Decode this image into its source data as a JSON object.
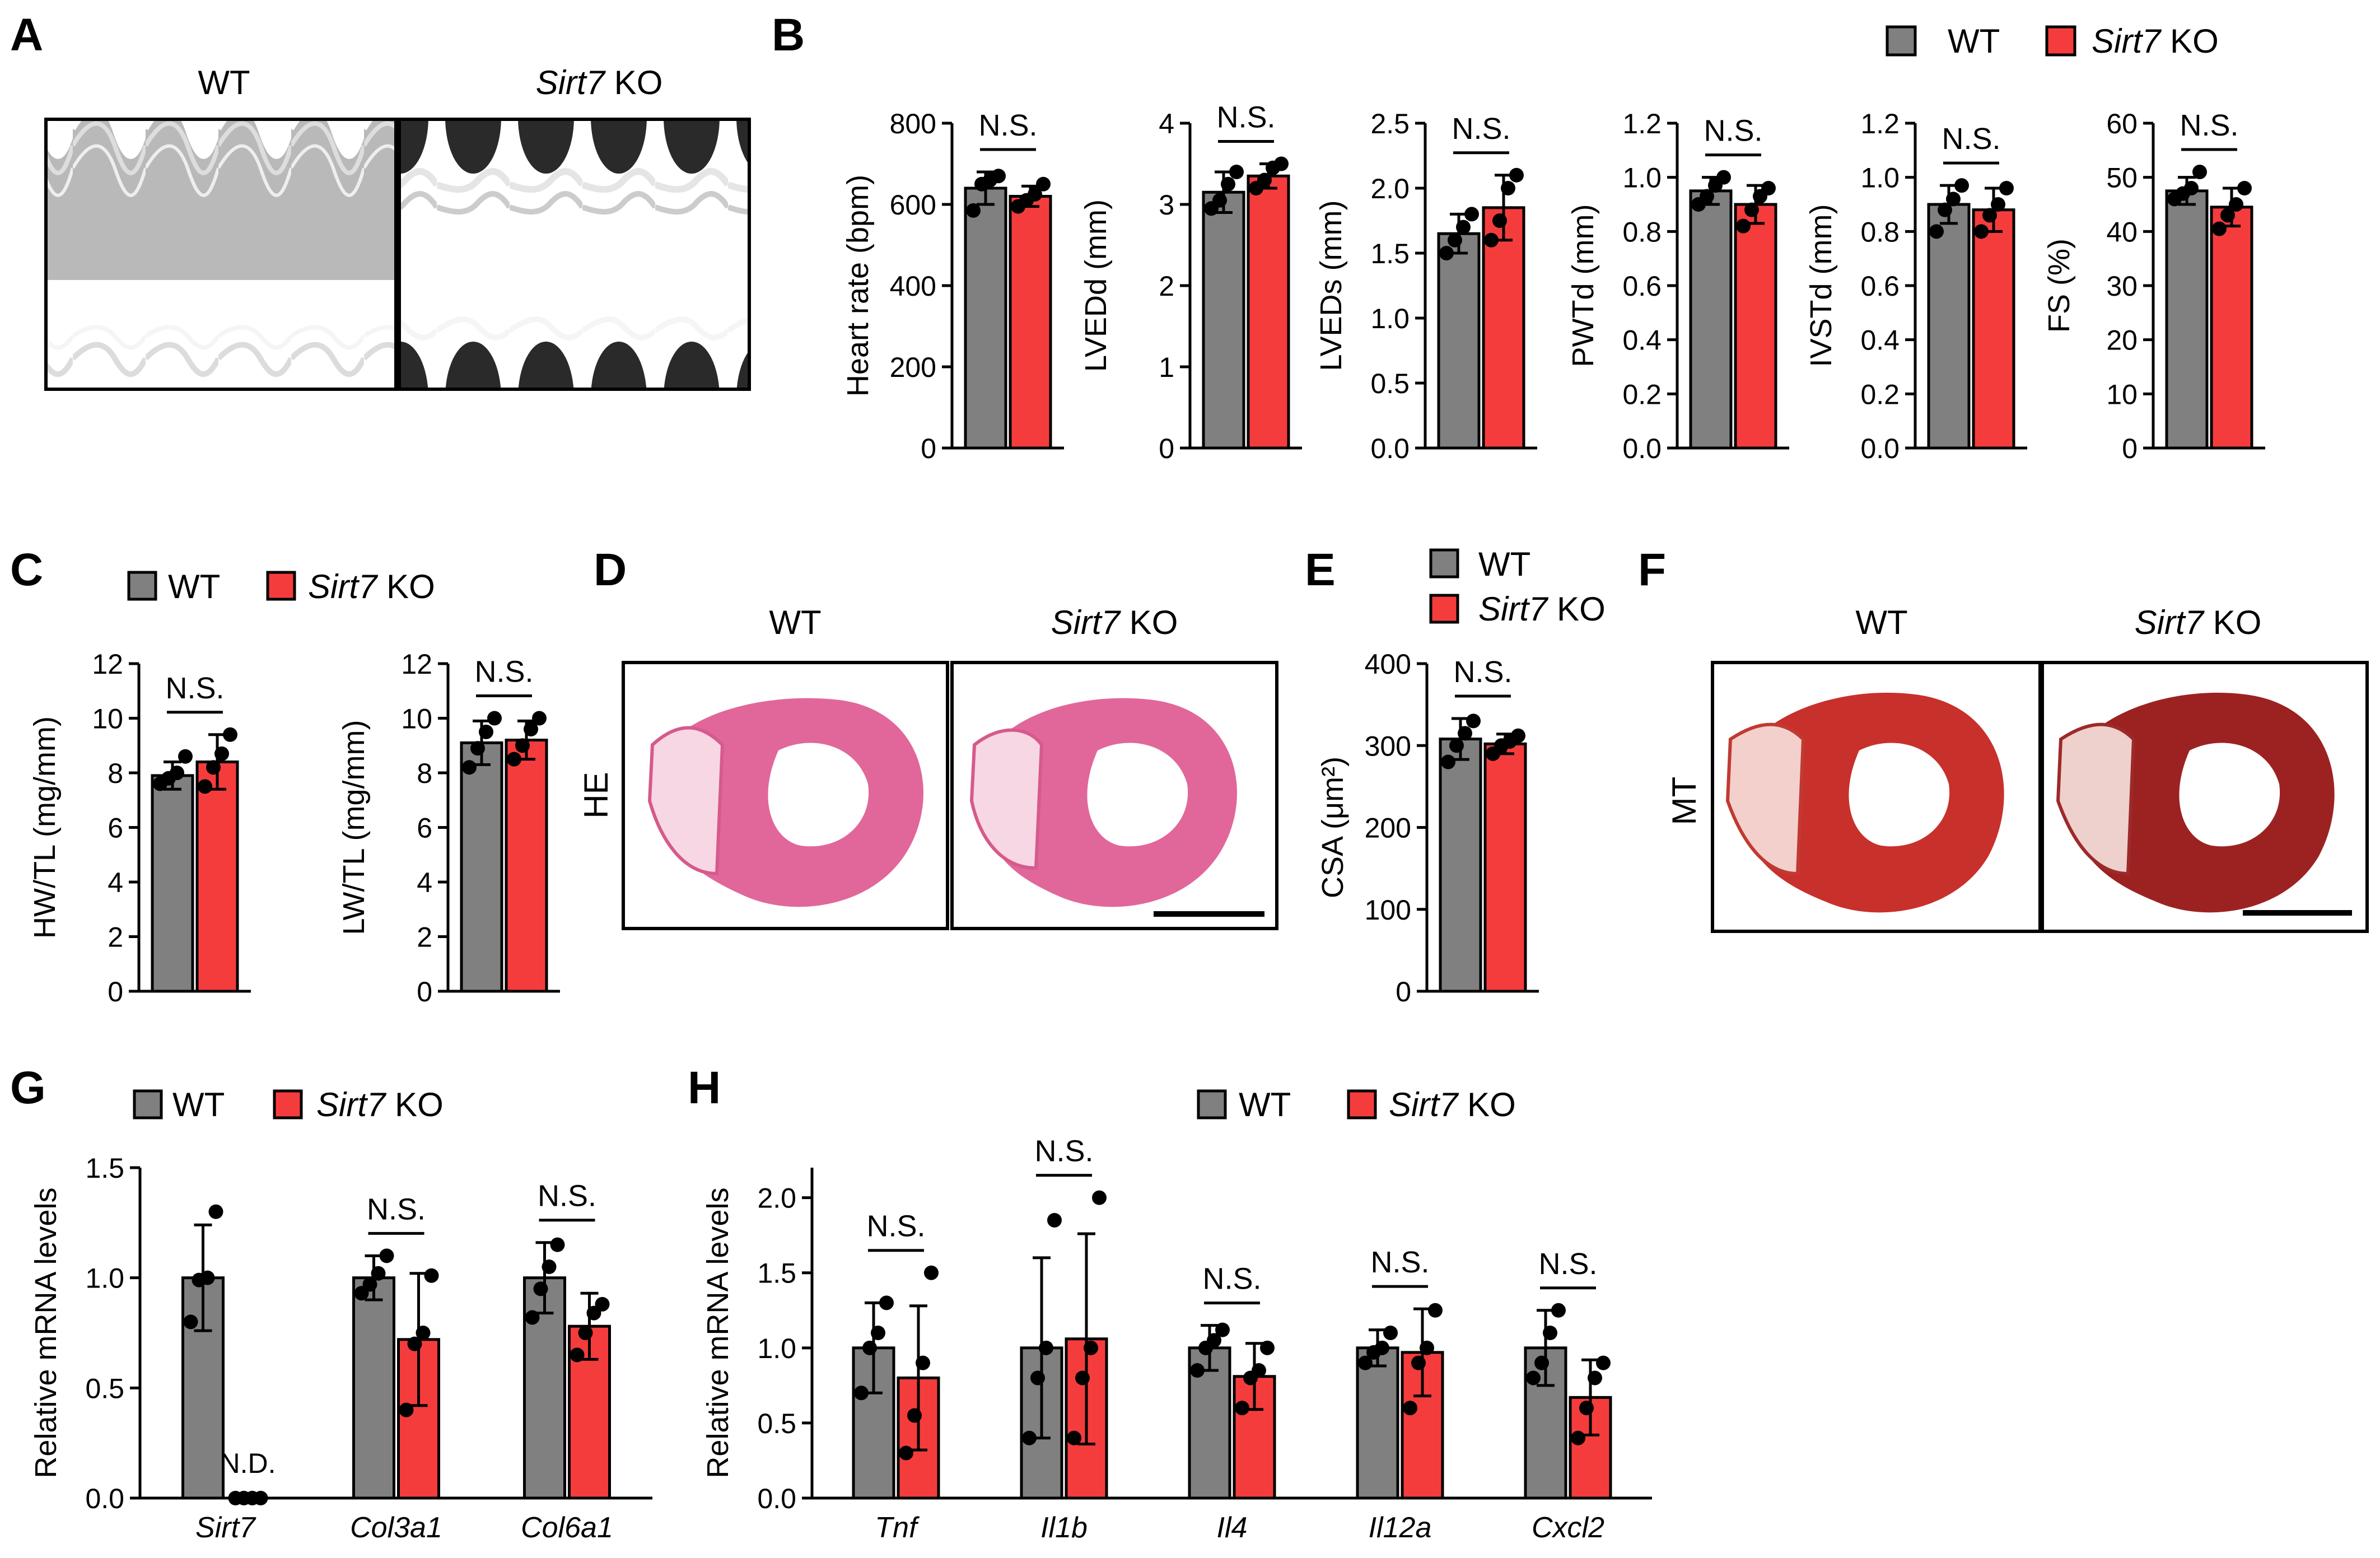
{
  "colors": {
    "wt": "#808080",
    "ko": "#f53c3c",
    "axis": "#000000"
  },
  "legend": {
    "wt_label": "WT",
    "ko_gene": "Sirt7",
    "ko_suffix": " KO"
  },
  "panel_labels": {
    "a": "A",
    "b": "B",
    "c": "C",
    "d": "D",
    "e": "E",
    "f": "F",
    "g": "G",
    "h": "H"
  },
  "images": {
    "echo": {
      "wt_label": "WT",
      "ko_gene": "Sirt7",
      "ko_suffix": " KO"
    },
    "he": {
      "wt_label": "WT",
      "ko_gene": "Sirt7",
      "ko_suffix": " KO",
      "row_label": "HE"
    },
    "mt": {
      "wt_label": "WT",
      "ko_gene": "Sirt7",
      "ko_suffix": " KO",
      "row_label": "MT"
    }
  },
  "chart_data": [
    {
      "id": "b1",
      "type": "bar",
      "ylabel": "Heart rate (bpm)",
      "ylim": [
        0,
        800
      ],
      "yticks": [
        "0",
        "200",
        "400",
        "600",
        "800"
      ],
      "categories": [
        ""
      ],
      "sig": [
        "N.S."
      ],
      "series": [
        {
          "name": "WT",
          "values": [
            640
          ],
          "err": [
            40
          ],
          "points": [
            [
              585,
              650,
              660,
              670
            ]
          ]
        },
        {
          "name": "Sirt7 KO",
          "values": [
            620
          ],
          "err": [
            25
          ],
          "points": [
            [
              595,
              610,
              625,
              650
            ]
          ]
        }
      ]
    },
    {
      "id": "b2",
      "type": "bar",
      "ylabel": "LVEDd (mm)",
      "ylim": [
        0,
        4
      ],
      "yticks": [
        "0",
        "1",
        "2",
        "3",
        "4"
      ],
      "categories": [
        ""
      ],
      "sig": [
        "N.S."
      ],
      "series": [
        {
          "name": "WT",
          "values": [
            3.15
          ],
          "err": [
            0.25
          ],
          "points": [
            [
              2.95,
              3.05,
              3.25,
              3.4
            ]
          ]
        },
        {
          "name": "Sirt7 KO",
          "values": [
            3.35
          ],
          "err": [
            0.15
          ],
          "points": [
            [
              3.2,
              3.3,
              3.45,
              3.5
            ]
          ]
        }
      ]
    },
    {
      "id": "b3",
      "type": "bar",
      "ylabel": "LVEDs (mm)",
      "ylim": [
        0,
        2.5
      ],
      "yticks": [
        "0.0",
        "0.5",
        "1.0",
        "1.5",
        "2.0",
        "2.5"
      ],
      "categories": [
        ""
      ],
      "sig": [
        "N.S."
      ],
      "series": [
        {
          "name": "WT",
          "values": [
            1.65
          ],
          "err": [
            0.15
          ],
          "points": [
            [
              1.5,
              1.6,
              1.7,
              1.8
            ]
          ]
        },
        {
          "name": "Sirt7 KO",
          "values": [
            1.85
          ],
          "err": [
            0.25
          ],
          "points": [
            [
              1.6,
              1.75,
              2.0,
              2.1
            ]
          ]
        }
      ]
    },
    {
      "id": "b4",
      "type": "bar",
      "ylabel": "PWTd (mm)",
      "ylim": [
        0,
        1.2
      ],
      "yticks": [
        "0.0",
        "0.2",
        "0.4",
        "0.6",
        "0.8",
        "1.0",
        "1.2"
      ],
      "categories": [
        ""
      ],
      "sig": [
        "N.S."
      ],
      "series": [
        {
          "name": "WT",
          "values": [
            0.95
          ],
          "err": [
            0.05
          ],
          "points": [
            [
              0.9,
              0.93,
              0.97,
              1.0
            ]
          ]
        },
        {
          "name": "Sirt7 KO",
          "values": [
            0.9
          ],
          "err": [
            0.07
          ],
          "points": [
            [
              0.82,
              0.88,
              0.93,
              0.96
            ]
          ]
        }
      ]
    },
    {
      "id": "b5",
      "type": "bar",
      "ylabel": "IVSTd (mm)",
      "ylim": [
        0,
        1.2
      ],
      "yticks": [
        "0.0",
        "0.2",
        "0.4",
        "0.6",
        "0.8",
        "1.0",
        "1.2"
      ],
      "categories": [
        ""
      ],
      "sig": [
        "N.S."
      ],
      "series": [
        {
          "name": "WT",
          "values": [
            0.9
          ],
          "err": [
            0.07
          ],
          "points": [
            [
              0.8,
              0.88,
              0.92,
              0.97
            ]
          ]
        },
        {
          "name": "Sirt7 KO",
          "values": [
            0.88
          ],
          "err": [
            0.08
          ],
          "points": [
            [
              0.8,
              0.86,
              0.9,
              0.96
            ]
          ]
        }
      ]
    },
    {
      "id": "b6",
      "type": "bar",
      "ylabel": "FS (%)",
      "ylim": [
        0,
        60
      ],
      "yticks": [
        "0",
        "10",
        "20",
        "30",
        "40",
        "50",
        "60"
      ],
      "categories": [
        ""
      ],
      "sig": [
        "N.S."
      ],
      "series": [
        {
          "name": "WT",
          "values": [
            47.5
          ],
          "err": [
            2.5
          ],
          "points": [
            [
              46,
              47,
              48,
              51
            ]
          ]
        },
        {
          "name": "Sirt7 KO",
          "values": [
            44.5
          ],
          "err": [
            3.5
          ],
          "points": [
            [
              40.5,
              43,
              45,
              48
            ]
          ]
        }
      ]
    },
    {
      "id": "c1",
      "type": "bar",
      "ylabel": "HW/TL (mg/mm)",
      "ylim": [
        0,
        12
      ],
      "yticks": [
        "0",
        "2",
        "4",
        "6",
        "8",
        "10",
        "12"
      ],
      "categories": [
        ""
      ],
      "sig": [
        "N.S."
      ],
      "series": [
        {
          "name": "WT",
          "values": [
            7.9
          ],
          "err": [
            0.5
          ],
          "points": [
            [
              7.6,
              7.8,
              8.0,
              8.6
            ]
          ]
        },
        {
          "name": "Sirt7 KO",
          "values": [
            8.4
          ],
          "err": [
            1.0
          ],
          "points": [
            [
              7.5,
              8.2,
              8.7,
              9.4
            ]
          ]
        }
      ]
    },
    {
      "id": "c2",
      "type": "bar",
      "ylabel": "LW/TL (mg/mm)",
      "ylim": [
        0,
        12
      ],
      "yticks": [
        "0",
        "2",
        "4",
        "6",
        "8",
        "10",
        "12"
      ],
      "categories": [
        ""
      ],
      "sig": [
        "N.S."
      ],
      "series": [
        {
          "name": "WT",
          "values": [
            9.1
          ],
          "err": [
            0.8
          ],
          "points": [
            [
              8.2,
              8.9,
              9.5,
              10.0
            ]
          ]
        },
        {
          "name": "Sirt7 KO",
          "values": [
            9.2
          ],
          "err": [
            0.7
          ],
          "points": [
            [
              8.5,
              9.0,
              9.6,
              10.0
            ]
          ]
        }
      ]
    },
    {
      "id": "e1",
      "type": "bar",
      "ylabel": "CSA (μm²)",
      "ylim": [
        0,
        400
      ],
      "yticks": [
        "0",
        "100",
        "200",
        "300",
        "400"
      ],
      "categories": [
        ""
      ],
      "sig": [
        "N.S."
      ],
      "series": [
        {
          "name": "WT",
          "values": [
            308
          ],
          "err": [
            25
          ],
          "points": [
            [
              280,
              300,
              315,
              330
            ]
          ]
        },
        {
          "name": "Sirt7 KO",
          "values": [
            302
          ],
          "err": [
            12
          ],
          "points": [
            [
              290,
              300,
              305,
              312
            ]
          ]
        }
      ]
    },
    {
      "id": "g1",
      "type": "bar",
      "ylabel": "Relative mRNA  levels",
      "ylim": [
        0,
        1.5
      ],
      "yticks": [
        "0.0",
        "0.5",
        "1.0",
        "1.5"
      ],
      "categories": [
        "Sirt7",
        "Col3a1",
        "Col6a1"
      ],
      "sig": [
        "N.D.",
        "N.S.",
        "N.S."
      ],
      "series": [
        {
          "name": "WT",
          "values": [
            1.0,
            1.0,
            1.0
          ],
          "err": [
            0.24,
            0.1,
            0.16
          ],
          "points": [
            [
              0.8,
              0.99,
              1.0,
              1.3
            ],
            [
              0.93,
              0.97,
              1.02,
              1.1
            ],
            [
              0.82,
              0.95,
              1.05,
              1.15
            ]
          ]
        },
        {
          "name": "Sirt7 KO",
          "values": [
            0,
            0.72,
            0.78
          ],
          "err": [
            0,
            0.3,
            0.15
          ],
          "points": [
            [
              0,
              0,
              0,
              0
            ],
            [
              0.4,
              0.7,
              0.75,
              1.01
            ],
            [
              0.65,
              0.75,
              0.84,
              0.88
            ]
          ]
        }
      ]
    },
    {
      "id": "h1",
      "type": "bar",
      "ylabel": "Relative mRNA  levels",
      "ylim": [
        0,
        2.2
      ],
      "yticks": [
        "0.0",
        "0.5",
        "1.0",
        "1.5",
        "2.0"
      ],
      "categories": [
        "Tnf",
        "Il1b",
        "Il4",
        "Il12a",
        "Cxcl2"
      ],
      "sig": [
        "N.S.",
        "N.S.",
        "N.S.",
        "N.S.",
        "N.S."
      ],
      "series": [
        {
          "name": "WT",
          "values": [
            1.0,
            1.0,
            1.0,
            1.0,
            1.0
          ],
          "err": [
            0.3,
            0.6,
            0.15,
            0.12,
            0.25
          ],
          "points": [
            [
              0.7,
              1.0,
              1.1,
              1.3
            ],
            [
              0.4,
              0.8,
              1.0,
              1.85
            ],
            [
              0.85,
              1.0,
              1.05,
              1.12
            ],
            [
              0.9,
              0.97,
              1.0,
              1.1
            ],
            [
              0.8,
              0.9,
              1.1,
              1.25
            ]
          ]
        },
        {
          "name": "Sirt7 KO",
          "values": [
            0.8,
            1.06,
            0.81,
            0.97,
            0.67
          ],
          "err": [
            0.48,
            0.7,
            0.22,
            0.29,
            0.25
          ],
          "points": [
            [
              0.3,
              0.55,
              0.9,
              1.5
            ],
            [
              0.4,
              0.8,
              1.0,
              2.0
            ],
            [
              0.6,
              0.8,
              0.85,
              1.0
            ],
            [
              0.6,
              0.9,
              1.0,
              1.25
            ],
            [
              0.4,
              0.6,
              0.8,
              0.9
            ]
          ]
        }
      ]
    }
  ]
}
